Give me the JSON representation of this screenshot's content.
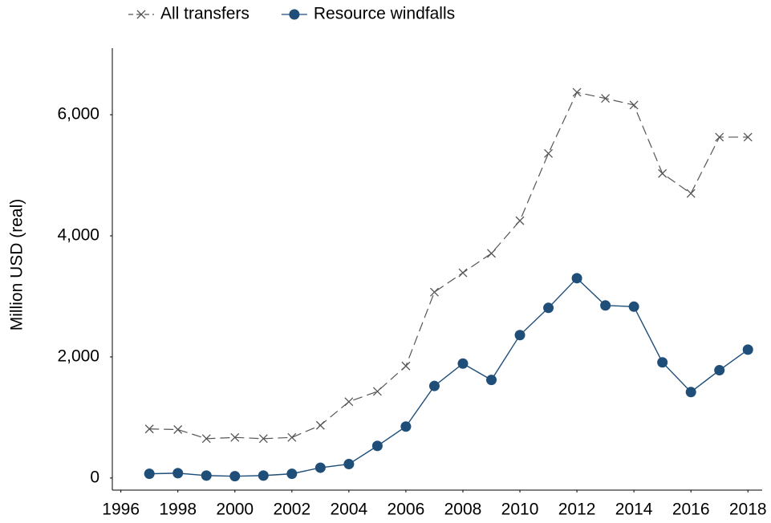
{
  "chart_data": {
    "type": "line",
    "y_label": "Million USD (real)",
    "x": [
      1997,
      1998,
      1999,
      2000,
      2001,
      2002,
      2003,
      2004,
      2005,
      2006,
      2007,
      2008,
      2009,
      2010,
      2011,
      2012,
      2013,
      2014,
      2015,
      2016,
      2017,
      2018
    ],
    "series": [
      {
        "name": "All transfers",
        "color": "#555555",
        "marker": "x",
        "dash": true,
        "values": [
          810,
          800,
          650,
          670,
          650,
          670,
          870,
          1260,
          1430,
          1850,
          3070,
          3390,
          3710,
          4250,
          5360,
          6370,
          6270,
          6160,
          5030,
          4700,
          5630,
          5630
        ]
      },
      {
        "name": "Resource windfalls",
        "color": "#1f4e79",
        "marker": "circle",
        "dash": false,
        "values": [
          70,
          80,
          40,
          30,
          40,
          70,
          170,
          230,
          530,
          850,
          1520,
          1890,
          1620,
          2360,
          2810,
          3300,
          2850,
          2830,
          1910,
          1420,
          1780,
          2120
        ]
      }
    ],
    "xlim": [
      1995.7,
      2018.5
    ],
    "xticks": [
      1996,
      1998,
      2000,
      2002,
      2004,
      2006,
      2008,
      2010,
      2012,
      2014,
      2016,
      2018
    ],
    "ylim": [
      -200,
      7100
    ],
    "yticks": [
      0,
      {
        "value": 2000,
        "label": "2,000"
      },
      {
        "value": 4000,
        "label": "4,000"
      },
      {
        "value": 6000,
        "label": "6,000"
      }
    ],
    "legend": "top"
  }
}
